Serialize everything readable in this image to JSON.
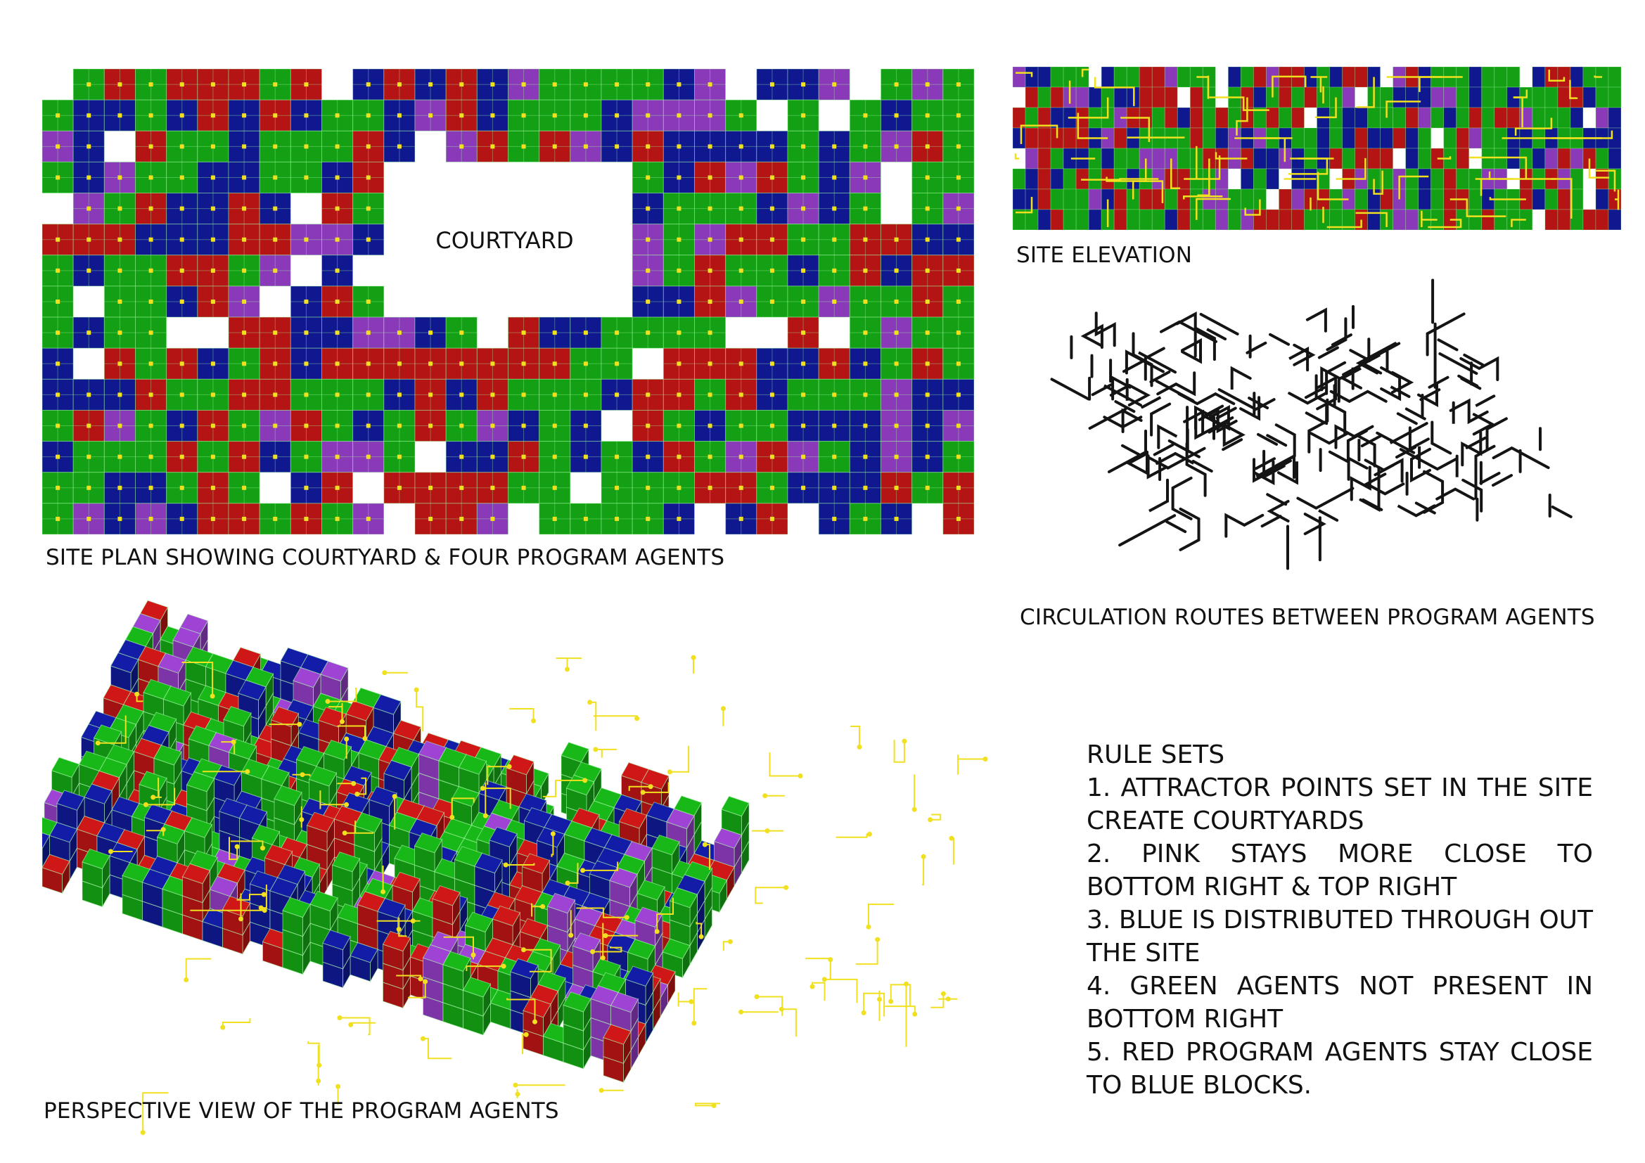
{
  "captions": {
    "site_plan": "SITE PLAN SHOWING COURTYARD & FOUR PROGRAM AGENTS",
    "courtyard": "COURTYARD",
    "site_elevation": "SITE ELEVATION",
    "circulation": "CIRCULATION ROUTES BETWEEN PROGRAM AGENTS",
    "perspective": "PERSPECTIVE VIEW OF THE PROGRAM AGENTS"
  },
  "rules": {
    "title": "RULE SETS",
    "items": [
      "1. ATTRACTOR POINTS SET IN THE SITE CREATE COURTYARDS",
      "2. PINK STAYS MORE CLOSE TO BOTTOM RIGHT & TOP RIGHT",
      "3. BLUE IS DISTRIBUTED THROUGH OUT THE SITE",
      "4. GREEN AGENTS NOT PRESENT IN BOTTOM RIGHT",
      "5. RED PROGRAM AGENTS STAY CLOSE TO BLUE BLOCKS."
    ]
  },
  "colors": {
    "green": "#14a014",
    "blue": "#101890",
    "red": "#b41414",
    "purple": "#8a3ab8",
    "circulation_yellow": "#f0e020",
    "route_black": "#141414"
  }
}
